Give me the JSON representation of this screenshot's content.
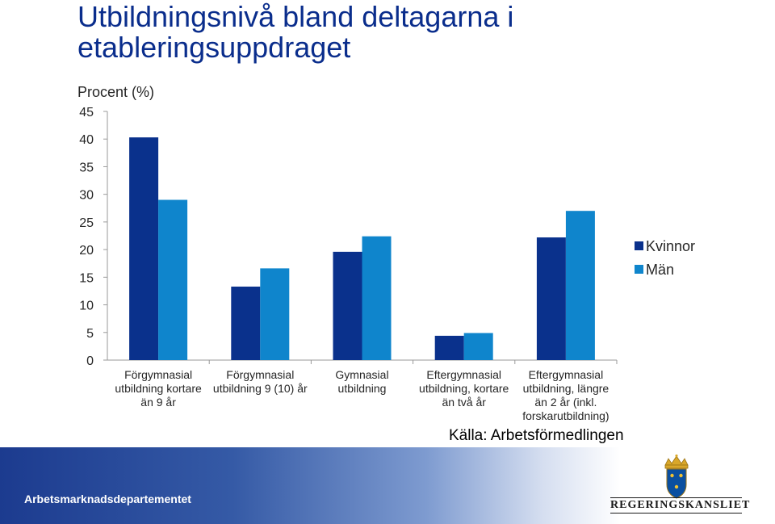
{
  "title": "Utbildningsnivå bland deltagarna i etableringsuppdraget",
  "unit_label": "Procent (%)",
  "source": "Källa: Arbetsförmedlingen",
  "footer": {
    "department": "Arbetsmarknadsdepartementet",
    "logo_text": "REGERINGSKANSLIET"
  },
  "colors": {
    "kvinnor": "#0a318c",
    "man": "#0f85cc",
    "title": "#0a2d8c"
  },
  "chart_data": {
    "type": "bar",
    "title": "Utbildningsnivå bland deltagarna i etableringsuppdraget",
    "ylabel": "Procent (%)",
    "ylim": [
      0,
      45
    ],
    "yticks": [
      0,
      5,
      10,
      15,
      20,
      25,
      30,
      35,
      40,
      45
    ],
    "grid": false,
    "legend_position": "right",
    "categories": [
      [
        "Förgymnasial",
        "utbildning kortare",
        "än 9 år"
      ],
      [
        "Förgymnasial",
        "utbildning 9 (10) år"
      ],
      [
        "Gymnasial",
        "utbildning"
      ],
      [
        "Eftergymnasial",
        "utbildning, kortare",
        "än två år"
      ],
      [
        "Eftergymnasial",
        "utbildning, längre",
        "än 2 år (inkl.",
        "forskarutbildning)"
      ]
    ],
    "series": [
      {
        "name": "Kvinnor",
        "color": "#0a318c",
        "values": [
          40.3,
          13.3,
          19.6,
          4.4,
          22.2
        ]
      },
      {
        "name": "Män",
        "color": "#0f85cc",
        "values": [
          29.0,
          16.6,
          22.4,
          4.9,
          27.0
        ]
      }
    ]
  }
}
